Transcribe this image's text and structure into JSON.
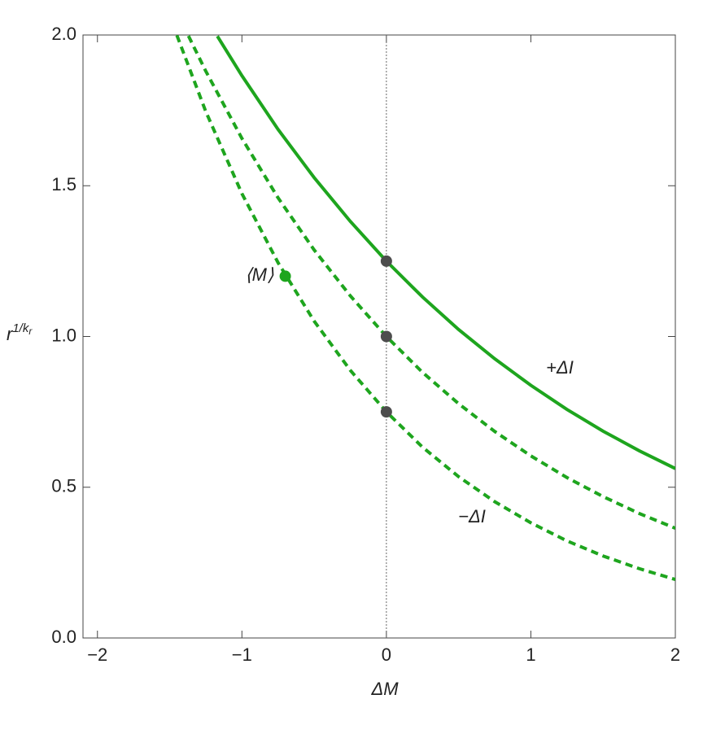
{
  "chart_data": {
    "type": "line",
    "x_label": "ΔM",
    "y_label": "r",
    "y_label_sup": "1/k",
    "y_label_sup_sub": "r",
    "xlim": [
      -2.1,
      2.0
    ],
    "ylim": [
      0,
      2
    ],
    "xticks": [
      {
        "value": -2,
        "label": "−2"
      },
      {
        "value": -1,
        "label": "−1"
      },
      0,
      1,
      2
    ],
    "yticks": [
      {
        "value": 0,
        "label": "0.0"
      },
      0.5,
      {
        "value": 1,
        "label": "1.0"
      },
      1.5,
      {
        "value": 2,
        "label": "2.0"
      }
    ],
    "vline": 0,
    "series": [
      {
        "color": "#1ea51e",
        "style": "solid",
        "x": [
          -1.17,
          -1,
          -0.75,
          -0.5,
          -0.25,
          0,
          0.25,
          0.5,
          0.75,
          1,
          1.25,
          1.5,
          1.75,
          2
        ],
        "values": [
          1.996,
          1.865,
          1.687,
          1.527,
          1.382,
          1.25,
          1.131,
          1.023,
          0.926,
          0.838,
          0.758,
          0.686,
          0.621,
          0.562
        ]
      },
      {
        "color": "#1ea51e",
        "style": "dashed",
        "x": [
          -1.37,
          -1.25,
          -1,
          -0.75,
          -0.5,
          -0.25,
          0,
          0.25,
          0.5,
          0.75,
          1,
          1.25,
          1.5,
          1.75,
          2
        ],
        "values": [
          1.997,
          1.88,
          1.657,
          1.46,
          1.287,
          1.135,
          1,
          0.881,
          0.777,
          0.685,
          0.604,
          0.532,
          0.469,
          0.413,
          0.364
        ]
      },
      {
        "color": "#1ea51e",
        "style": "dashed",
        "x": [
          -1.45,
          -1.25,
          -1,
          -0.75,
          -0.5,
          -0.25,
          0,
          0.25,
          0.5,
          0.75,
          1,
          1.25,
          1.5,
          1.75,
          2
        ],
        "values": [
          1.999,
          1.746,
          1.474,
          1.245,
          1.051,
          0.888,
          0.75,
          0.633,
          0.535,
          0.452,
          0.382,
          0.322,
          0.272,
          0.23,
          0.194
        ]
      }
    ],
    "points": [
      {
        "x": 0,
        "y": 1.25,
        "color": "#4d4d4d"
      },
      {
        "x": 0,
        "y": 1,
        "color": "#4d4d4d"
      },
      {
        "x": 0,
        "y": 0.75,
        "color": "#4d4d4d"
      },
      {
        "x": -0.7,
        "y": 1.2,
        "color": "#1ea51e",
        "label": "⟨M⟩"
      }
    ],
    "annotations": [
      {
        "text": "+ΔI",
        "color": "#1ea51e"
      },
      {
        "text": "−ΔI",
        "color": "#1ea51e"
      }
    ]
  }
}
